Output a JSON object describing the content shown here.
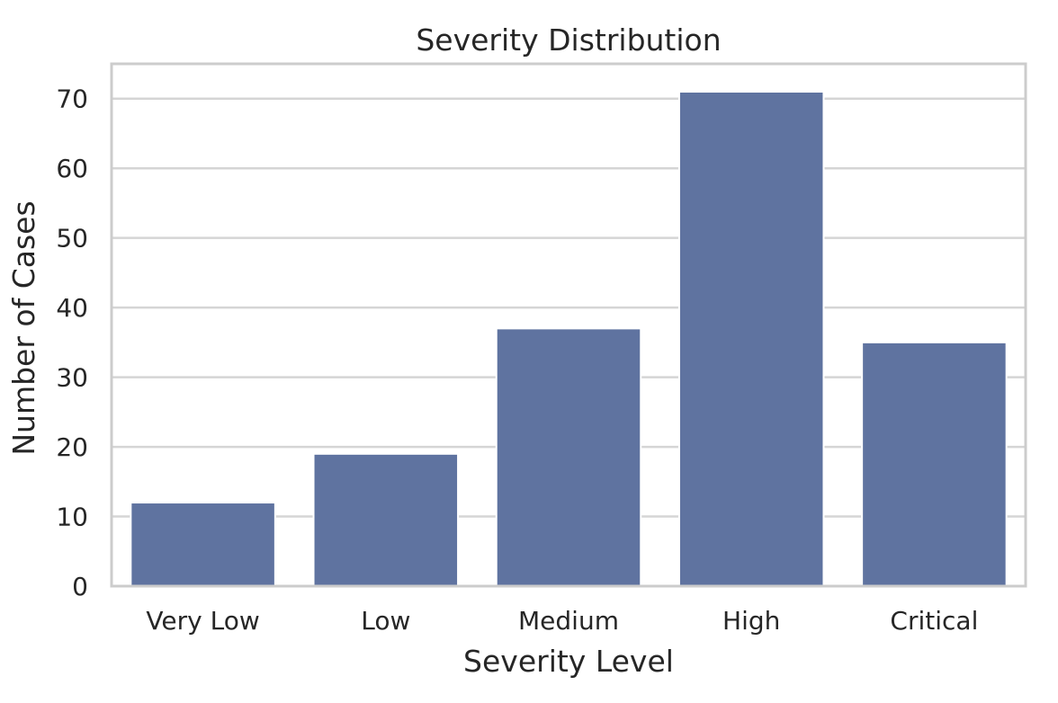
{
  "chart_data": {
    "type": "bar",
    "title": "Severity Distribution",
    "xlabel": "Severity Level",
    "ylabel": "Number of Cases",
    "categories": [
      "Very Low",
      "Low",
      "Medium",
      "High",
      "Critical"
    ],
    "values": [
      12,
      19,
      37,
      71,
      35
    ],
    "ylim": [
      0,
      75
    ],
    "yticks": [
      0,
      10,
      20,
      30,
      40,
      50,
      60,
      70
    ],
    "grid": true,
    "bar_color": "#5f73a0",
    "grid_color": "#d5d5d5",
    "frame_color": "#cccccc"
  }
}
